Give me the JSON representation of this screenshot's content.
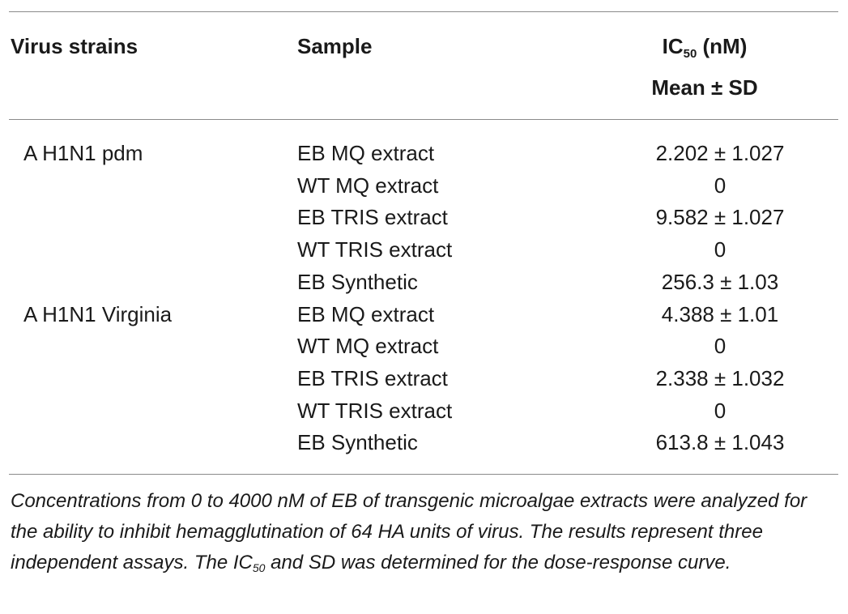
{
  "table": {
    "headers": {
      "virus_strains": "Virus strains",
      "sample": "Sample",
      "ic50_prefix": "IC",
      "ic50_sub": "50",
      "ic50_unit": " (nM)",
      "mean_sd": "Mean ± SD"
    },
    "rows": [
      {
        "virus": "A H1N1 pdm",
        "sample": "EB MQ extract",
        "value": "2.202 ± 1.027"
      },
      {
        "virus": "",
        "sample": "WT MQ extract",
        "value": "0"
      },
      {
        "virus": "",
        "sample": "EB TRIS extract",
        "value": "9.582 ± 1.027"
      },
      {
        "virus": "",
        "sample": "WT TRIS extract",
        "value": "0"
      },
      {
        "virus": "",
        "sample": "EB Synthetic",
        "value": "256.3 ± 1.03"
      },
      {
        "virus": "A H1N1 Virginia",
        "sample": "EB MQ extract",
        "value": "4.388 ± 1.01"
      },
      {
        "virus": "",
        "sample": "WT MQ extract",
        "value": "0"
      },
      {
        "virus": "",
        "sample": "EB TRIS extract",
        "value": "2.338 ± 1.032"
      },
      {
        "virus": "",
        "sample": "WT TRIS extract",
        "value": "0"
      },
      {
        "virus": "",
        "sample": "EB Synthetic",
        "value": "613.8 ± 1.043"
      }
    ]
  },
  "caption": {
    "part1": "Concentrations from 0 to 4000 nM of EB of transgenic microalgae extracts were analyzed for the ability to inhibit hemagglutination of 64 HA units of virus. The results represent three independent assays. The IC",
    "sub": "50",
    "part2": " and SD was determined for the dose-response curve."
  }
}
